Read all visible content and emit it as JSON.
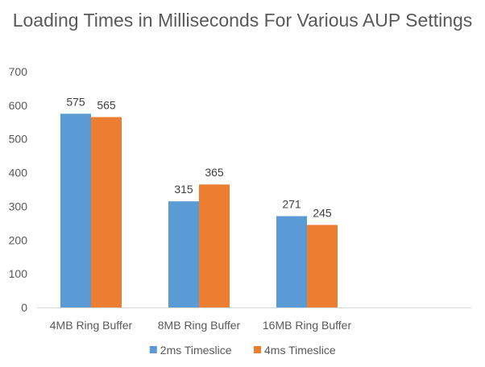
{
  "chart_data": {
    "type": "bar",
    "title": "Loading Times in Milliseconds For Various AUP Settings",
    "categories": [
      "4MB Ring Buffer",
      "8MB Ring Buffer",
      "16MB Ring Buffer"
    ],
    "series": [
      {
        "name": "2ms Timeslice",
        "values": [
          575,
          315,
          271
        ],
        "color": "#5B9BD5"
      },
      {
        "name": "4ms Timeslice",
        "values": [
          565,
          365,
          245
        ],
        "color": "#ED7D31"
      }
    ],
    "ylim": [
      0,
      700
    ],
    "yticks": [
      0,
      100,
      200,
      300,
      400,
      500,
      600,
      700
    ],
    "xlabel": "",
    "ylabel": "",
    "grid": false,
    "legend": "bottom",
    "data_labels": true
  }
}
